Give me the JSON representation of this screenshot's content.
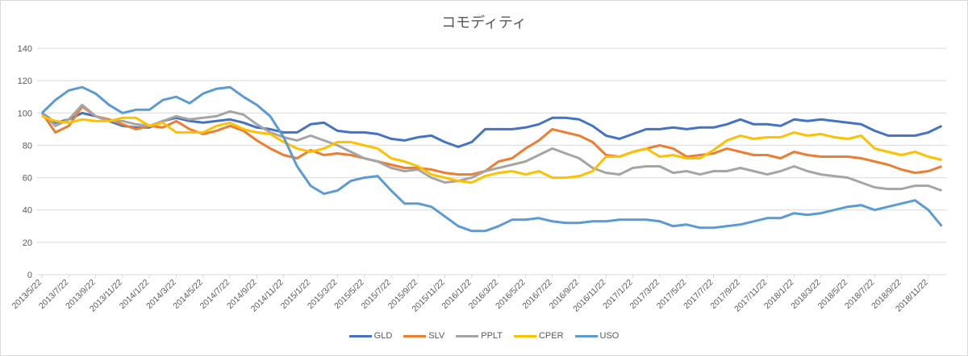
{
  "chart_data": {
    "type": "line",
    "title": "コモディティ",
    "xlabel": "",
    "ylabel": "",
    "ylim": [
      0,
      140
    ],
    "yticks": [
      0,
      20,
      40,
      60,
      80,
      100,
      120,
      140
    ],
    "grid": true,
    "legend": "bottom",
    "xticks": [
      "2013/5/22",
      "2013/7/22",
      "2013/9/22",
      "2013/11/22",
      "2014/1/22",
      "2014/3/22",
      "2014/5/22",
      "2014/7/22",
      "2014/9/22",
      "2014/11/22",
      "2015/1/22",
      "2015/3/22",
      "2015/5/22",
      "2015/7/22",
      "2015/9/22",
      "2015/11/22",
      "2016/1/22",
      "2016/3/22",
      "2016/5/22",
      "2016/7/22",
      "2016/9/22",
      "2016/11/22",
      "2017/1/22",
      "2017/3/22",
      "2017/5/22",
      "2017/7/22",
      "2017/9/22",
      "2017/11/22",
      "2018/1/22",
      "2018/3/22",
      "2018/5/22",
      "2018/7/22",
      "2018/9/22",
      "2018/11/22"
    ],
    "x_start": "2013/5/22",
    "x_step": "1 month",
    "series": [
      {
        "name": "GLD",
        "color": "#4472C4",
        "values": [
          100,
          94,
          96,
          100,
          98,
          95,
          92,
          91,
          91,
          95,
          97,
          95,
          94,
          95,
          96,
          94,
          91,
          90,
          88,
          88,
          93,
          94,
          89,
          88,
          88,
          87,
          84,
          83,
          85,
          86,
          82,
          79,
          82,
          90,
          90,
          90,
          91,
          93,
          97,
          97,
          96,
          92,
          86,
          84,
          87,
          90,
          90,
          91,
          90,
          91,
          91,
          93,
          96,
          93,
          93,
          92,
          96,
          95,
          96,
          95,
          94,
          93,
          89,
          86,
          86,
          86,
          88,
          92
        ]
      },
      {
        "name": "SLV",
        "color": "#ED7D31",
        "values": [
          100,
          88,
          92,
          104,
          98,
          96,
          93,
          90,
          92,
          91,
          95,
          90,
          87,
          89,
          92,
          89,
          83,
          78,
          74,
          72,
          77,
          74,
          75,
          74,
          72,
          70,
          68,
          66,
          66,
          65,
          63,
          62,
          62,
          64,
          70,
          72,
          78,
          83,
          90,
          88,
          86,
          82,
          74,
          73,
          76,
          78,
          80,
          78,
          73,
          74,
          75,
          78,
          76,
          74,
          74,
          72,
          76,
          74,
          73,
          73,
          73,
          72,
          70,
          68,
          65,
          63,
          64,
          67
        ]
      },
      {
        "name": "PPLT",
        "color": "#A5A5A5",
        "values": [
          100,
          92,
          96,
          105,
          98,
          95,
          95,
          93,
          92,
          95,
          98,
          96,
          97,
          98,
          101,
          99,
          93,
          88,
          85,
          83,
          86,
          83,
          80,
          76,
          72,
          70,
          66,
          64,
          65,
          60,
          57,
          58,
          60,
          64,
          66,
          68,
          70,
          74,
          78,
          75,
          72,
          66,
          63,
          62,
          66,
          67,
          67,
          63,
          64,
          62,
          64,
          64,
          66,
          64,
          62,
          64,
          67,
          64,
          62,
          61,
          60,
          57,
          54,
          53,
          53,
          55,
          55,
          52
        ]
      },
      {
        "name": "CPER",
        "color": "#FFC000",
        "values": [
          98,
          95,
          94,
          96,
          95,
          95,
          97,
          97,
          92,
          94,
          88,
          88,
          88,
          92,
          94,
          90,
          88,
          87,
          82,
          78,
          76,
          78,
          82,
          82,
          80,
          78,
          72,
          70,
          67,
          62,
          60,
          58,
          57,
          61,
          63,
          64,
          62,
          64,
          60,
          60,
          61,
          64,
          73,
          73,
          76,
          78,
          73,
          74,
          72,
          72,
          77,
          83,
          86,
          84,
          85,
          85,
          88,
          86,
          87,
          85,
          84,
          86,
          78,
          76,
          74,
          76,
          73,
          71
        ]
      },
      {
        "name": "USO",
        "color": "#5B9BD5",
        "values": [
          100,
          108,
          114,
          116,
          112,
          105,
          100,
          102,
          102,
          108,
          110,
          106,
          112,
          115,
          116,
          110,
          105,
          98,
          85,
          67,
          55,
          50,
          52,
          58,
          60,
          61,
          52,
          44,
          44,
          42,
          36,
          30,
          27,
          27,
          30,
          34,
          34,
          35,
          33,
          32,
          32,
          33,
          33,
          34,
          34,
          34,
          33,
          30,
          31,
          29,
          29,
          30,
          31,
          33,
          35,
          35,
          38,
          37,
          38,
          40,
          42,
          43,
          40,
          42,
          44,
          46,
          40,
          30
        ]
      }
    ]
  }
}
